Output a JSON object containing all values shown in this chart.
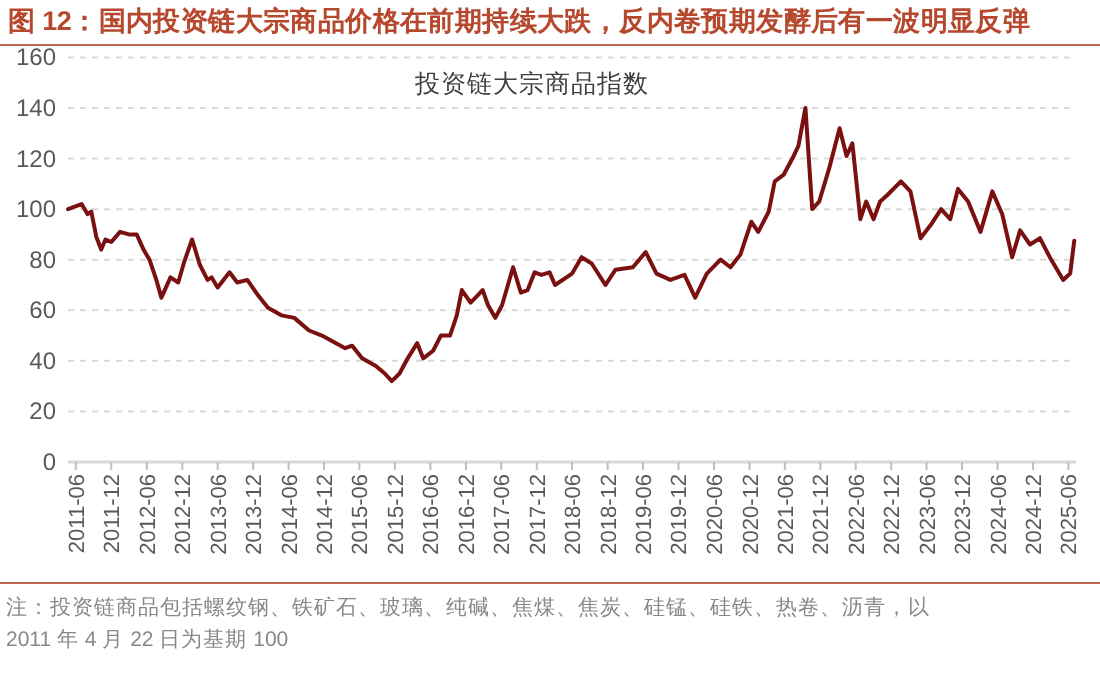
{
  "chart_data": {
    "type": "line",
    "title": "图 12：国内投资链大宗商品价格在前期持续大跌，反内卷预期发酵后有一波明显反弹",
    "subtitle": "投资链大宗商品指数",
    "annotations": [
      "注：投资链商品包括螺纹钢、铁矿石、玻璃、纯碱、焦煤、焦炭、硅锰、硅铁、热卷、沥青，以 2011 年 4 月 22 日为基期 100"
    ],
    "x": [
      "2011-04-22",
      "2011-07-01",
      "2011-08-01",
      "2011-08-20",
      "2011-09-15",
      "2011-10-10",
      "2011-11-01",
      "2011-12-01",
      "2012-01-15",
      "2012-03-01",
      "2012-04-10",
      "2012-05-15",
      "2012-06-15",
      "2012-07-20",
      "2012-08-15",
      "2012-10-01",
      "2012-11-10",
      "2012-12-10",
      "2013-01-20",
      "2013-03-01",
      "2013-04-10",
      "2013-05-01",
      "2013-06-01",
      "2013-08-01",
      "2013-09-10",
      "2013-11-01",
      "2013-12-25",
      "2014-02-15",
      "2014-04-25",
      "2014-07-01",
      "2014-09-15",
      "2014-11-20",
      "2015-02-01",
      "2015-03-20",
      "2015-04-25",
      "2015-06-15",
      "2015-08-25",
      "2015-10-10",
      "2015-11-15",
      "2015-12-25",
      "2016-02-05",
      "2016-03-25",
      "2016-04-25",
      "2016-06-15",
      "2016-07-25",
      "2016-09-10",
      "2016-10-15",
      "2016-11-10",
      "2016-12-25",
      "2017-02-01",
      "2017-02-25",
      "2017-03-25",
      "2017-05-01",
      "2017-06-05",
      "2017-08-01",
      "2017-09-10",
      "2017-10-15",
      "2017-11-20",
      "2017-12-25",
      "2018-02-05",
      "2018-03-05",
      "2018-06-01",
      "2018-07-20",
      "2018-09-10",
      "2018-11-20",
      "2019-01-10",
      "2019-04-10",
      "2019-06-15",
      "2019-08-10",
      "2019-10-20",
      "2020-01-01",
      "2020-02-25",
      "2020-04-25",
      "2020-07-05",
      "2020-08-25",
      "2020-10-15",
      "2020-12-10",
      "2021-01-15",
      "2021-03-10",
      "2021-04-10",
      "2021-05-25",
      "2021-07-10",
      "2021-08-10",
      "2021-09-15",
      "2021-10-20",
      "2021-11-25",
      "2022-01-15",
      "2022-03-10",
      "2022-04-15",
      "2022-05-15",
      "2022-06-25",
      "2022-07-25",
      "2022-09-01",
      "2022-10-05",
      "2022-11-10",
      "2023-01-20",
      "2023-03-10",
      "2023-05-01",
      "2023-06-25",
      "2023-08-15",
      "2023-10-01",
      "2023-11-10",
      "2024-01-01",
      "2024-03-05",
      "2024-05-05",
      "2024-06-25",
      "2024-08-15",
      "2024-09-25",
      "2024-11-15",
      "2025-01-05",
      "2025-02-25",
      "2025-05-05",
      "2025-06-10",
      "2025-07-01"
    ],
    "series": [
      {
        "color": "#7b1010",
        "values": [
          100,
          102,
          98,
          99,
          89,
          84,
          88,
          87,
          91,
          90,
          90,
          84,
          80,
          72,
          65,
          73,
          71,
          79,
          88,
          78,
          72,
          73,
          69,
          75,
          71,
          72,
          66,
          61,
          58,
          57,
          52,
          50,
          47,
          45,
          46,
          41,
          38,
          35,
          32,
          35,
          41,
          47,
          41,
          44,
          50,
          50,
          58,
          68,
          63,
          66,
          68,
          62,
          57,
          62,
          77,
          67,
          68,
          75,
          74,
          75,
          70,
          74.5,
          81,
          78.5,
          70,
          76,
          77,
          83,
          74.5,
          72,
          74,
          65,
          74.5,
          80,
          77,
          82,
          95,
          91,
          99,
          111,
          113.5,
          120,
          125,
          140,
          100,
          103,
          116,
          132,
          121,
          126,
          96,
          103,
          96,
          103,
          105.5,
          111,
          107,
          88.5,
          94,
          100,
          96,
          108,
          103,
          91,
          107,
          98,
          81,
          91.6,
          86,
          88.5,
          81,
          72,
          74.5,
          87.5
        ]
      }
    ],
    "xlim": [
      "2011-04-22",
      "2025-07-10"
    ],
    "xticks": [
      "2011-06",
      "2011-12",
      "2012-06",
      "2012-12",
      "2013-06",
      "2013-12",
      "2014-06",
      "2014-12",
      "2015-06",
      "2015-12",
      "2016-06",
      "2016-12",
      "2017-06",
      "2017-12",
      "2018-06",
      "2018-12",
      "2019-06",
      "2019-12",
      "2020-06",
      "2020-12",
      "2021-06",
      "2021-12",
      "2022-06",
      "2022-12",
      "2023-06",
      "2023-12",
      "2024-06",
      "2024-12",
      "2025-06"
    ],
    "ylim": [
      0,
      160
    ],
    "yticks": [
      0,
      20,
      40,
      60,
      80,
      100,
      120,
      140,
      160
    ],
    "grid": "y"
  }
}
